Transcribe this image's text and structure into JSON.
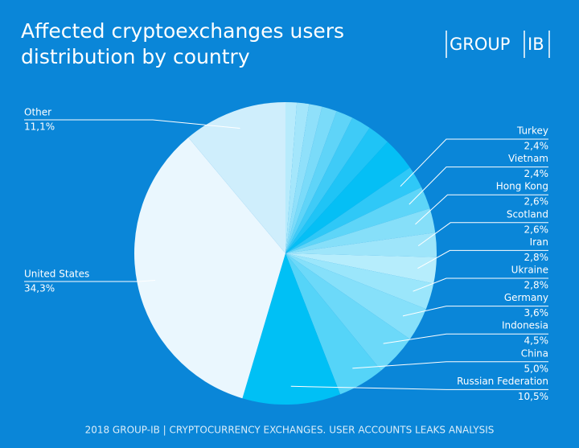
{
  "chart_data": {
    "type": "pie",
    "title": [
      "Affected cryptoexchanges users",
      "distribution by country"
    ],
    "logo": [
      "GROUP",
      "IB"
    ],
    "footer": "2018 GROUP-IB  |  CRYPTOCURRENCY EXCHANGES. USER ACCOUNTS LEAKS ANALYSIS",
    "categories": [
      null,
      null,
      null,
      null,
      null,
      null,
      null,
      null,
      "Turkey",
      "Vietnam",
      "Hong Kong",
      "Scotland",
      "Iran",
      "Ukraine",
      "Germany",
      "Indonesia",
      "China",
      "Russian Federation",
      "United States",
      "Other"
    ],
    "values": [
      1.2,
      1.3,
      1.4,
      1.6,
      1.8,
      2.1,
      2.4,
      3.6,
      2.4,
      2.4,
      2.6,
      2.6,
      2.8,
      2.8,
      3.6,
      4.5,
      5.0,
      10.5,
      34.3,
      11.1
    ],
    "value_labels": [
      null,
      null,
      null,
      null,
      null,
      null,
      null,
      null,
      "2,4%",
      "2,4%",
      "2,6%",
      "2,6%",
      "2,8%",
      "2,8%",
      "3,6%",
      "4,5%",
      "5,0%",
      "10,5%",
      "34,3%",
      "11,1%"
    ],
    "colors": [
      "#b7ebfc",
      "#a4e6fb",
      "#8fe0fa",
      "#7adbf9",
      "#5fd4f8",
      "#3fcbf7",
      "#1fc4f6",
      "#05bff5",
      "#2fc8f7",
      "#5ed5f8",
      "#86dff9",
      "#9ee5fa",
      "#b6edfc",
      "#9be6fb",
      "#86e0fa",
      "#6cd9f9",
      "#55d4f8",
      "#00c0f5",
      "#eaf7fe",
      "#cfeefc"
    ]
  }
}
